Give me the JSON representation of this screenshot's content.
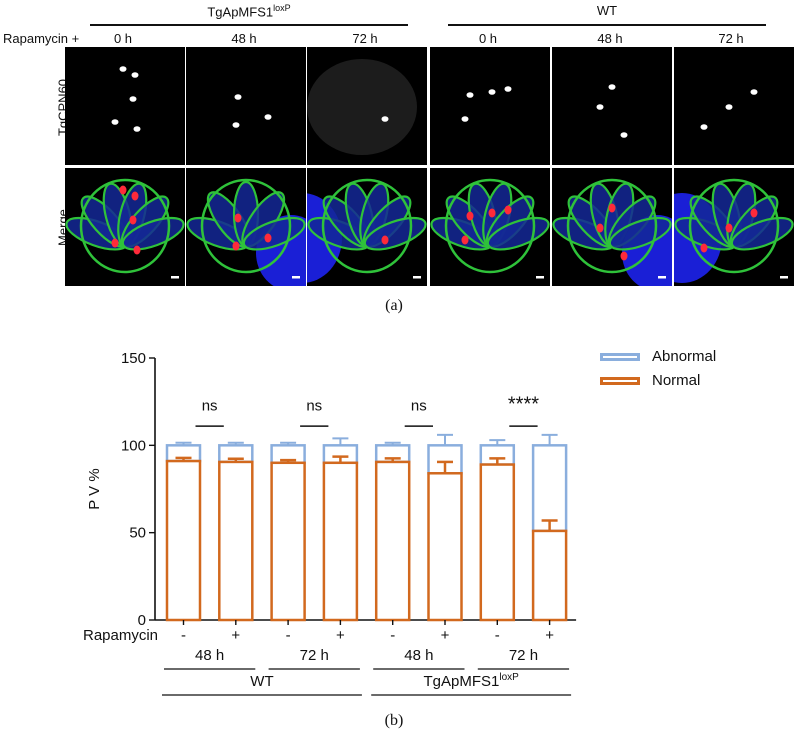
{
  "panel_a": {
    "treatment_label": "Rapamycin +",
    "groups": [
      {
        "name": "TgApMFS1",
        "superscript": "loxP",
        "times": [
          "0 h",
          "48 h",
          "72 h"
        ]
      },
      {
        "name": "WT",
        "superscript": "",
        "times": [
          "0 h",
          "48 h",
          "72 h"
        ]
      }
    ],
    "row_labels": [
      "TgCPN60",
      "Merge"
    ],
    "caption": "(a)",
    "colors": {
      "membrane": "#2fc23a",
      "apicoplast": "#ff2a3a",
      "nucleus": "#1a1fd6",
      "signal": "#ffffff"
    }
  },
  "chart_data": {
    "type": "bar",
    "ylabel": "P V %",
    "ylim": [
      0,
      150
    ],
    "yticks": [
      0,
      50,
      100,
      150
    ],
    "rapamycin_label": "Rapamycin",
    "categories": [
      "-",
      "+",
      "-",
      "+",
      "-",
      "+",
      "-",
      "+"
    ],
    "time_groups": [
      "48 h",
      "72 h",
      "48 h",
      "72 h"
    ],
    "strain_groups": [
      {
        "name": "WT",
        "superscript": ""
      },
      {
        "name": "TgApMFS1",
        "superscript": "loxP"
      }
    ],
    "series": [
      {
        "name": "Abnormal",
        "values": [
          100,
          100,
          100,
          100,
          100,
          100,
          100,
          100
        ],
        "error": [
          1.5,
          1.5,
          1.5,
          4,
          1.5,
          6,
          3,
          6
        ],
        "color": "#8aaedd"
      },
      {
        "name": "Normal",
        "values": [
          91,
          90.5,
          90,
          90,
          90.5,
          84,
          89,
          51
        ],
        "error": [
          1.8,
          1.8,
          1.5,
          3.5,
          2,
          6.5,
          3.5,
          6
        ],
        "color": "#d2691e"
      }
    ],
    "significance": [
      "ns",
      "ns",
      "ns",
      "****"
    ],
    "caption": "(b)"
  }
}
